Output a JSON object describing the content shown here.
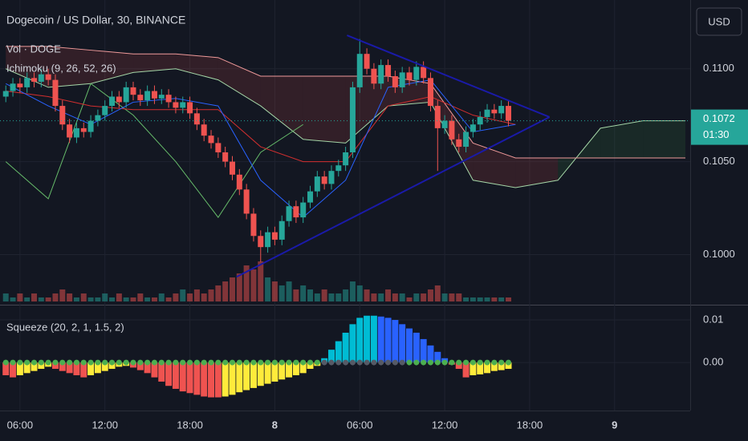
{
  "chart_data": [
    {
      "type": "candlestick",
      "title": "Dogecoin / US Dollar, 30, BINANCE",
      "indicators": [
        "Vol · DOGE",
        "Ichimoku (9, 26, 52, 26)"
      ],
      "currency": "USD",
      "colors": {
        "up": "#26a69a",
        "down": "#ef5350"
      },
      "x": [
        5,
        5.5,
        6,
        6.5,
        7,
        7.5,
        8,
        8.5,
        9,
        9.5,
        10,
        10.5,
        11,
        11.5,
        12,
        12.5,
        13,
        13.5,
        14,
        14.5,
        15,
        15.5,
        16,
        16.5,
        17,
        17.5,
        18,
        18.5,
        19,
        19.5,
        20,
        20.5,
        21,
        21.5,
        22,
        22.5,
        23,
        23.5,
        24,
        24.5,
        25,
        25.5,
        26,
        26.5,
        27,
        27.5,
        28,
        28.5,
        29,
        29.5,
        30,
        30.5,
        31,
        31.5,
        32,
        32.5,
        33,
        33.5,
        34,
        34.5,
        35,
        35.5,
        36,
        36.5,
        37,
        37.5,
        38,
        38.5,
        39,
        39.5,
        40,
        40.5
      ],
      "candles": [
        [
          0.1085,
          0.1091,
          0.1082,
          0.1088
        ],
        [
          0.1088,
          0.1095,
          0.1085,
          0.1092
        ],
        [
          0.1092,
          0.1095,
          0.1087,
          0.109
        ],
        [
          0.109,
          0.1098,
          0.1087,
          0.1095
        ],
        [
          0.1095,
          0.1098,
          0.109,
          0.1093
        ],
        [
          0.1093,
          0.11,
          0.109,
          0.1097
        ],
        [
          0.1097,
          0.11,
          0.1091,
          0.1094
        ],
        [
          0.1094,
          0.1097,
          0.1077,
          0.108
        ],
        [
          0.108,
          0.1083,
          0.1067,
          0.107
        ],
        [
          0.107,
          0.1073,
          0.106,
          0.1063
        ],
        [
          0.1063,
          0.1071,
          0.106,
          0.1068
        ],
        [
          0.1068,
          0.1071,
          0.1063,
          0.1066
        ],
        [
          0.1066,
          0.1075,
          0.1063,
          0.1072
        ],
        [
          0.1072,
          0.1078,
          0.1069,
          0.1075
        ],
        [
          0.1075,
          0.1083,
          0.1072,
          0.108
        ],
        [
          0.108,
          0.1088,
          0.1077,
          0.1085
        ],
        [
          0.1085,
          0.1088,
          0.1079,
          0.1082
        ],
        [
          0.1082,
          0.1093,
          0.1079,
          0.109
        ],
        [
          0.109,
          0.1093,
          0.1083,
          0.1086
        ],
        [
          0.1086,
          0.1089,
          0.108,
          0.1083
        ],
        [
          0.1083,
          0.1091,
          0.108,
          0.1088
        ],
        [
          0.1088,
          0.1091,
          0.1081,
          0.1084
        ],
        [
          0.1084,
          0.1089,
          0.1081,
          0.1086
        ],
        [
          0.1086,
          0.1089,
          0.1079,
          0.1082
        ],
        [
          0.1082,
          0.1085,
          0.1076,
          0.1079
        ],
        [
          0.1079,
          0.1085,
          0.1076,
          0.1082
        ],
        [
          0.1082,
          0.1085,
          0.1073,
          0.1076
        ],
        [
          0.1076,
          0.1079,
          0.1067,
          0.107
        ],
        [
          0.107,
          0.1073,
          0.1061,
          0.1064
        ],
        [
          0.1064,
          0.1067,
          0.1057,
          0.106
        ],
        [
          0.106,
          0.1063,
          0.1052,
          0.1055
        ],
        [
          0.1055,
          0.1058,
          0.1047,
          0.105
        ],
        [
          0.105,
          0.1053,
          0.104,
          0.1043
        ],
        [
          0.1043,
          0.1046,
          0.1032,
          0.1035
        ],
        [
          0.1035,
          0.1038,
          0.1019,
          0.1022
        ],
        [
          0.1022,
          0.1025,
          0.1007,
          0.101
        ],
        [
          0.101,
          0.1013,
          0.0996,
          0.1004
        ],
        [
          0.1004,
          0.1015,
          0.1001,
          0.1012
        ],
        [
          0.1012,
          0.1015,
          0.1005,
          0.1008
        ],
        [
          0.1008,
          0.1021,
          0.1005,
          0.1018
        ],
        [
          0.1018,
          0.1029,
          0.1015,
          0.1026
        ],
        [
          0.1026,
          0.1029,
          0.1017,
          0.102
        ],
        [
          0.102,
          0.1031,
          0.1017,
          0.1028
        ],
        [
          0.1028,
          0.1037,
          0.1025,
          0.1034
        ],
        [
          0.1034,
          0.1045,
          0.1031,
          0.1042
        ],
        [
          0.1042,
          0.1045,
          0.1035,
          0.1038
        ],
        [
          0.1038,
          0.1048,
          0.1035,
          0.1045
        ],
        [
          0.1045,
          0.1051,
          0.1042,
          0.1048
        ],
        [
          0.1048,
          0.1058,
          0.1045,
          0.1055
        ],
        [
          0.1055,
          0.1093,
          0.1052,
          0.109
        ],
        [
          0.109,
          0.1116,
          0.1087,
          0.1108
        ],
        [
          0.1108,
          0.1111,
          0.1097,
          0.11
        ],
        [
          0.11,
          0.1103,
          0.1089,
          0.1092
        ],
        [
          0.1092,
          0.1105,
          0.1089,
          0.1102
        ],
        [
          0.1102,
          0.1105,
          0.1093,
          0.1096
        ],
        [
          0.1096,
          0.1099,
          0.1087,
          0.109
        ],
        [
          0.109,
          0.1101,
          0.1087,
          0.1098
        ],
        [
          0.1098,
          0.1101,
          0.1091,
          0.1094
        ],
        [
          0.1094,
          0.1104,
          0.1091,
          0.1101
        ],
        [
          0.1101,
          0.1104,
          0.1092,
          0.1095
        ],
        [
          0.1095,
          0.1098,
          0.1077,
          0.108
        ],
        [
          0.108,
          0.1083,
          0.1045,
          0.1068
        ],
        [
          0.1068,
          0.1075,
          0.1065,
          0.1072
        ],
        [
          0.1072,
          0.1075,
          0.1059,
          0.1062
        ],
        [
          0.1062,
          0.1065,
          0.1055,
          0.1058
        ],
        [
          0.1058,
          0.1069,
          0.1055,
          0.1066
        ],
        [
          0.1066,
          0.1073,
          0.1063,
          0.107
        ],
        [
          0.107,
          0.1077,
          0.1067,
          0.1074
        ],
        [
          0.1074,
          0.1081,
          0.1071,
          0.1078
        ],
        [
          0.1078,
          0.1081,
          0.1073,
          0.1076
        ],
        [
          0.1076,
          0.1083,
          0.1073,
          0.108
        ],
        [
          0.108,
          0.1083,
          0.1069,
          0.1072
        ]
      ],
      "volume": [
        2,
        1,
        2,
        1,
        2,
        1,
        1,
        2,
        3,
        2,
        1,
        2,
        1,
        1,
        2,
        1,
        2,
        1,
        1,
        2,
        1,
        1,
        2,
        1,
        2,
        3,
        2,
        3,
        2,
        3,
        4,
        5,
        6,
        7,
        9,
        8,
        10,
        6,
        5,
        4,
        5,
        3,
        4,
        3,
        2,
        3,
        2,
        2,
        3,
        5,
        4,
        3,
        2,
        2,
        3,
        2,
        2,
        1,
        2,
        2,
        3,
        4,
        2,
        2,
        2,
        1,
        1,
        1,
        1,
        1,
        1,
        1
      ],
      "ichimoku": {
        "x": [
          5,
          8,
          11,
          14,
          17,
          20,
          23,
          26,
          29,
          32,
          35,
          38,
          41,
          44,
          47,
          50,
          53
        ],
        "conversion": [
          0.1092,
          0.108,
          0.107,
          0.1082,
          0.1084,
          0.108,
          0.104,
          0.102,
          0.104,
          0.109,
          0.1094,
          0.1066,
          0.107,
          null,
          null,
          null,
          null
        ],
        "base": [
          0.1088,
          0.1085,
          0.108,
          0.1078,
          0.1078,
          0.1078,
          0.1058,
          0.105,
          0.105,
          0.108,
          0.1085,
          0.1075,
          0.107,
          null,
          null,
          null,
          null
        ],
        "lagging": [
          0.105,
          0.103,
          0.1092,
          0.1075,
          0.105,
          0.102,
          0.1055,
          0.107,
          null,
          null,
          null,
          null,
          null,
          null,
          null,
          null,
          null
        ],
        "span_a": [
          0.11,
          0.109,
          0.1092,
          0.1098,
          0.11,
          0.1094,
          0.108,
          0.1062,
          0.106,
          0.108,
          0.1082,
          0.104,
          0.1036,
          0.104,
          0.1068,
          0.1072,
          0.1072
        ],
        "span_b": [
          0.1112,
          0.1112,
          0.111,
          0.1108,
          0.1108,
          0.1106,
          0.1096,
          0.1096,
          0.1096,
          0.1096,
          0.1092,
          0.106,
          0.1052,
          0.1052,
          0.1052,
          0.1052,
          0.1052
        ]
      },
      "trendlines": [
        {
          "x": [
            29.1,
            43.4
          ],
          "y": [
            0.1118,
            0.1074
          ]
        },
        {
          "x": [
            21.3,
            43.4
          ],
          "y": [
            0.0988,
            0.1074
          ]
        }
      ],
      "xlim": [
        4.59,
        53.34
      ],
      "xticks": [
        {
          "value": 6,
          "label": "06:00"
        },
        {
          "value": 12,
          "label": "12:00"
        },
        {
          "value": 18,
          "label": "18:00"
        },
        {
          "value": 24,
          "label": "8"
        },
        {
          "value": 30,
          "label": "06:00"
        },
        {
          "value": 36,
          "label": "12:00"
        },
        {
          "value": 42,
          "label": "18:00"
        },
        {
          "value": 48,
          "label": "9"
        }
      ],
      "ylim": [
        0.0973,
        0.1137
      ],
      "yticks": [
        {
          "value": 0.11,
          "label": "0.1100"
        },
        {
          "value": 0.105,
          "label": "0.1050"
        },
        {
          "value": 0.1,
          "label": "0.1000"
        }
      ],
      "last_price": {
        "value": 0.1072,
        "label": "0.1072"
      },
      "countdown": "01:30"
    },
    {
      "type": "squeeze",
      "title": "Squeeze (20, 2, 1, 1.5, 2)",
      "values": [
        -0.003,
        -0.0035,
        -0.003,
        -0.0025,
        -0.002,
        -0.0015,
        -0.001,
        -0.0015,
        -0.002,
        -0.0025,
        -0.003,
        -0.0035,
        -0.003,
        -0.0025,
        -0.002,
        -0.0015,
        -0.001,
        -0.0008,
        -0.0012,
        -0.0018,
        -0.0025,
        -0.0035,
        -0.0045,
        -0.0055,
        -0.0062,
        -0.0068,
        -0.0072,
        -0.0076,
        -0.008,
        -0.0082,
        -0.0082,
        -0.008,
        -0.0076,
        -0.007,
        -0.0065,
        -0.006,
        -0.0055,
        -0.005,
        -0.0045,
        -0.004,
        -0.0035,
        -0.003,
        -0.0025,
        -0.0015,
        -0.0008,
        0.001,
        0.003,
        0.005,
        0.007,
        0.009,
        0.0105,
        0.011,
        0.011,
        0.0108,
        0.0105,
        0.01,
        0.009,
        0.008,
        0.007,
        0.0055,
        0.004,
        0.0025,
        0.001,
        -0.0005,
        -0.0015,
        -0.0035,
        -0.003,
        -0.0028,
        -0.0025,
        -0.002,
        -0.0018,
        -0.0015
      ],
      "colors": {
        "up_rising": "#00bcd4",
        "up_falling": "#2962ff",
        "down_falling": "#ef5350",
        "down_rising": "#ffeb3b",
        "dot_on": "#4caf50",
        "dot_off": "#555a66"
      },
      "dots_off_x": [
        27.5,
        33
      ],
      "ylim": [
        -0.0113,
        0.0134
      ],
      "yticks": [
        {
          "value": 0.01,
          "label": "0.01"
        },
        {
          "value": 0,
          "label": "0.00"
        }
      ]
    }
  ]
}
